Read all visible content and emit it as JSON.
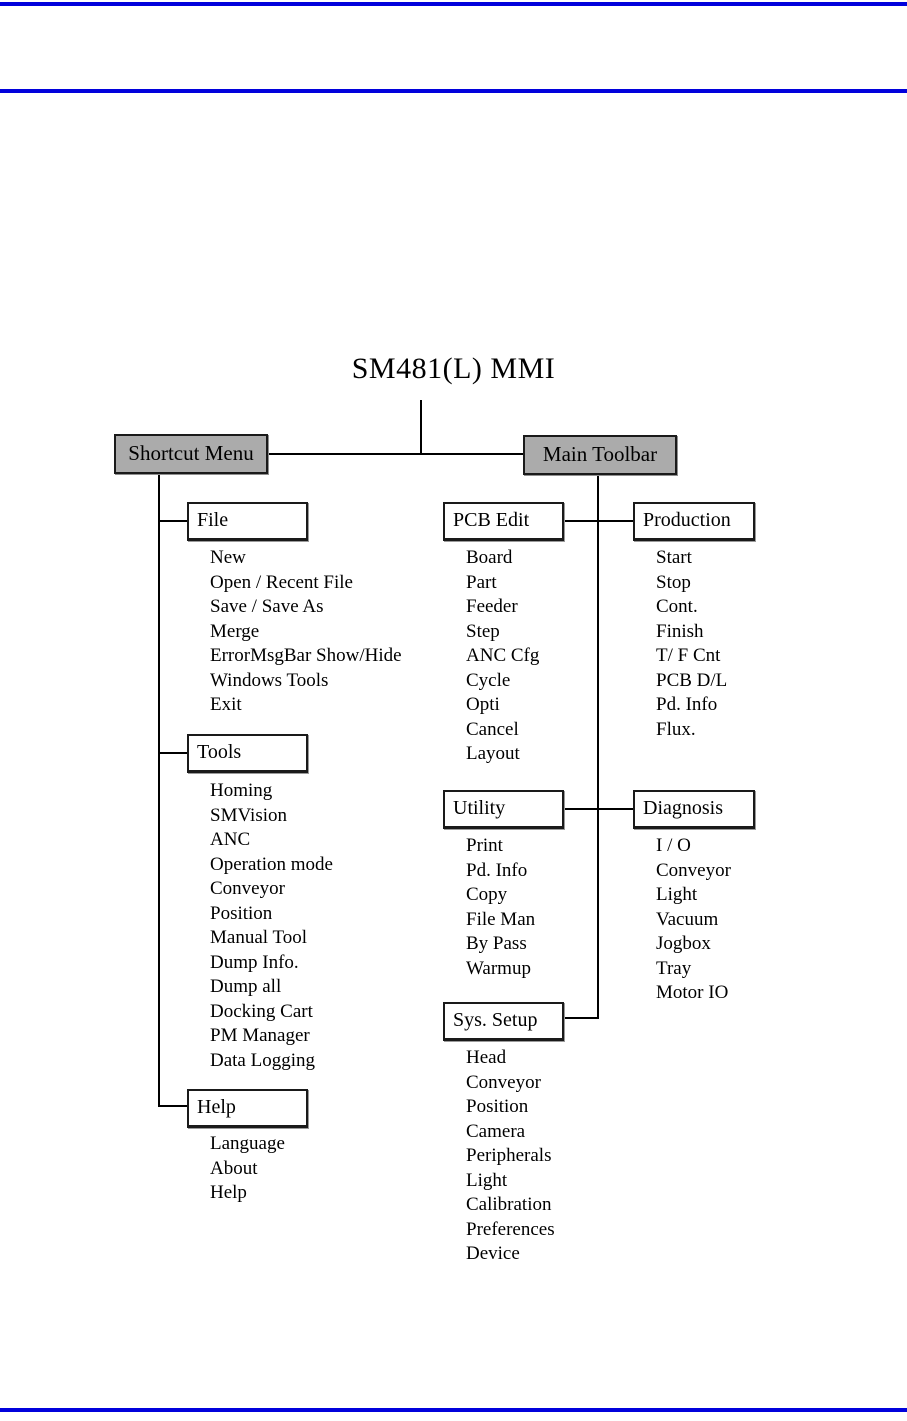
{
  "page": {
    "title": "SM481(L) MMI",
    "rule_color": "#0101DC",
    "root_node_fill": "#ABABAB"
  },
  "roots": {
    "shortcut_menu": "Shortcut Menu",
    "main_toolbar": "Main Toolbar"
  },
  "menus": {
    "file": {
      "label": "File",
      "items": [
        "New",
        "Open / Recent File",
        "Save / Save As",
        "Merge",
        "ErrorMsgBar Show/Hide",
        "Windows Tools",
        "Exit"
      ]
    },
    "tools": {
      "label": "Tools",
      "items": [
        "Homing",
        "SMVision",
        "ANC",
        "Operation mode",
        "Conveyor",
        "Position",
        "Manual Tool",
        "Dump Info.",
        "Dump all",
        "Docking Cart",
        "PM Manager",
        "Data Logging"
      ]
    },
    "help": {
      "label": "Help",
      "items": [
        "Language",
        "About",
        "Help"
      ]
    },
    "pcb_edit": {
      "label": "PCB Edit",
      "items": [
        "Board",
        "Part",
        "Feeder",
        "Step",
        "ANC Cfg",
        "Cycle",
        "Opti",
        "Cancel",
        "Layout"
      ]
    },
    "utility": {
      "label": "Utility",
      "items": [
        "Print",
        "Pd. Info",
        "Copy",
        "File Man",
        "By Pass",
        "Warmup"
      ]
    },
    "sys_setup": {
      "label": "Sys. Setup",
      "items": [
        "Head",
        "Conveyor",
        "Position",
        "Camera",
        "Peripherals",
        "Light",
        "Calibration",
        "Preferences",
        "Device"
      ]
    },
    "production": {
      "label": "Production",
      "items": [
        "Start",
        "Stop",
        "Cont.",
        "Finish",
        "T/ F Cnt",
        "PCB D/L",
        "Pd. Info",
        "Flux."
      ]
    },
    "diagnosis": {
      "label": "Diagnosis",
      "items": [
        "I / O",
        "Conveyor",
        "Light",
        "Vacuum",
        "Jogbox",
        "Tray",
        "Motor IO"
      ]
    }
  }
}
